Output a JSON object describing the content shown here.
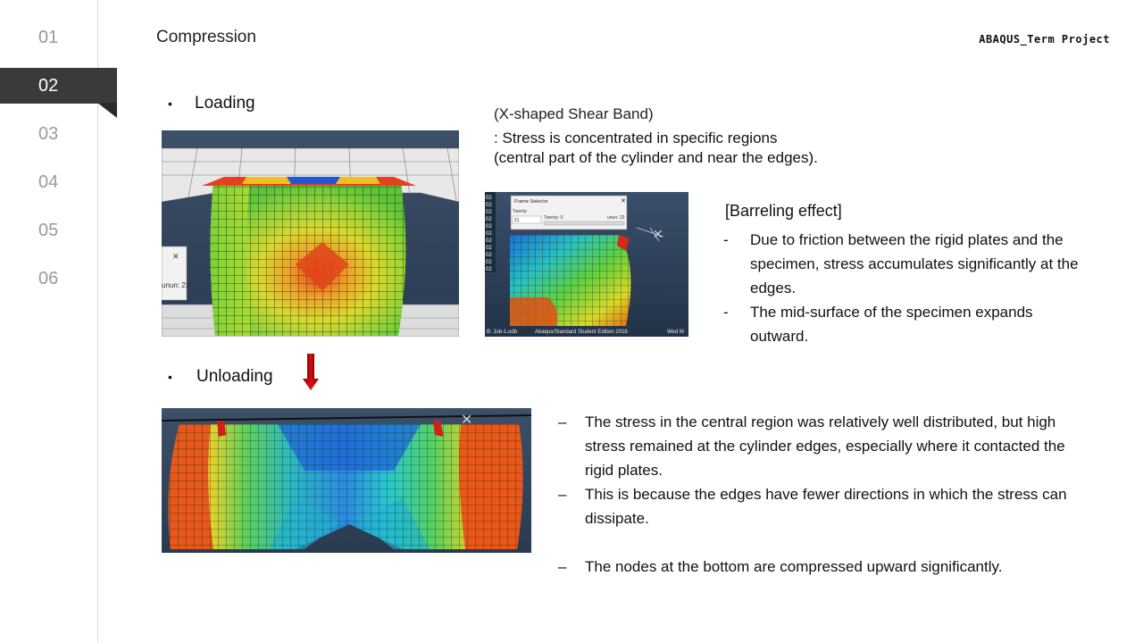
{
  "header": {
    "title": "Compression",
    "brand": "ABAQUS_Term Project"
  },
  "sidebar": {
    "items": [
      {
        "label": "01",
        "active": false
      },
      {
        "label": "02",
        "active": true
      },
      {
        "label": "03",
        "active": false
      },
      {
        "label": "04",
        "active": false
      },
      {
        "label": "05",
        "active": false
      },
      {
        "label": "06",
        "active": false
      }
    ]
  },
  "loading": {
    "bullet": "•",
    "label": "Loading",
    "dialog_fragment": "unun: 23"
  },
  "unloading": {
    "bullet": "•",
    "label": "Unloading"
  },
  "shear_band": {
    "heading": "(X-shaped Shear Band)",
    "line1": ": Stress is concentrated in specific regions",
    "line2": "(central part of the cylinder and near the edges)."
  },
  "frame_selector": {
    "title": "Frame Selector",
    "field_label": "Twenty",
    "value": "21",
    "min_label": "Twenty: 0",
    "max_label": "unun: 23",
    "legend_value": "02",
    "footer_left": "B: Job-1.odb",
    "footer_mid": "Abaqus/Standard Student Edition 2018",
    "footer_right": "Wed M"
  },
  "barreling": {
    "title": "[Barreling effect]",
    "marker": "-",
    "items": [
      "Due to friction between the rigid plates and the specimen, stress accumulates significantly at the edges.",
      "The mid-surface of the specimen expands outward."
    ]
  },
  "unloading_notes": {
    "marker": "–",
    "items": [
      "The stress in the central region was relatively well distributed, but high stress remained at the cylinder edges, especially where it contacted the rigid plates.",
      "This is because the edges have fewer directions in which the stress can dissipate.",
      "The nodes at the bottom are compressed upward significantly."
    ]
  },
  "colors": {
    "sidebar_active": "#3a3a3a",
    "arrow": "#c00000",
    "viewport_bg": "#2c3f57"
  }
}
